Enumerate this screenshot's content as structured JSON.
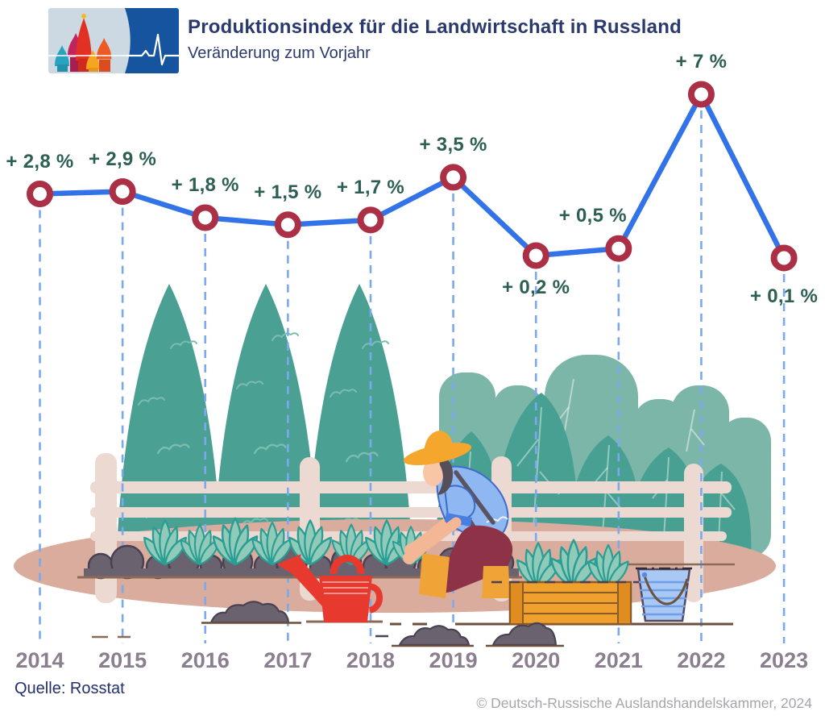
{
  "header": {
    "title": "Produktionsindex für die Landwirtschaft in Russland",
    "subtitle": "Veränderung zum Vorjahr"
  },
  "chart_data": {
    "type": "line",
    "title": "Produktionsindex für die Landwirtschaft in Russland",
    "subtitle": "Veränderung zum Vorjahr",
    "categories": [
      "2014",
      "2015",
      "2016",
      "2017",
      "2018",
      "2019",
      "2020",
      "2021",
      "2022",
      "2023"
    ],
    "values": [
      2.8,
      2.9,
      1.8,
      1.5,
      1.7,
      3.5,
      0.2,
      0.5,
      7,
      0.1
    ],
    "labels": [
      "+ 2,8 %",
      "+ 2,9 %",
      "+ 1,8 %",
      "+ 1,5 %",
      "+ 1,7 %",
      "+ 3,5 %",
      "+ 0,2 %",
      "+ 0,5 %",
      "+ 7 %",
      "+ 0,1 %"
    ],
    "label_side": [
      "above",
      "above",
      "above",
      "above",
      "above",
      "above",
      "below",
      "above",
      "above",
      "below"
    ],
    "unit": "%",
    "ylim": [
      0,
      7.5
    ],
    "legend": "none",
    "grid": "dashed-vertical-drop-lines"
  },
  "colors": {
    "line": "#3373e8",
    "marker_ring": "#ac3045",
    "marker_fill": "#ffffff",
    "gridline_dashed": "#7aa9ef",
    "value_label": "#2e5f55",
    "year_label": "#8b7f8f",
    "title": "#2b3a6e",
    "source": "#23306b",
    "copyright": "#a6a6aa",
    "logo_blue": "#17549f",
    "logo_bg": "#cdd9e2"
  },
  "illustration": {
    "scene": "gardener-tending-vegetable-beds",
    "elements": [
      "conifer-trees",
      "leafy-bushes",
      "wooden-fence",
      "soil-beds",
      "seedlings",
      "farmer-with-straw-hat",
      "red-watering-can",
      "wooden-crate-with-seedlings",
      "blue-bucket",
      "ground-patch"
    ]
  },
  "footer": {
    "source": "Quelle: Rosstat",
    "copyright": "© Deutsch-Russische Auslandshandelskammer, 2024"
  }
}
